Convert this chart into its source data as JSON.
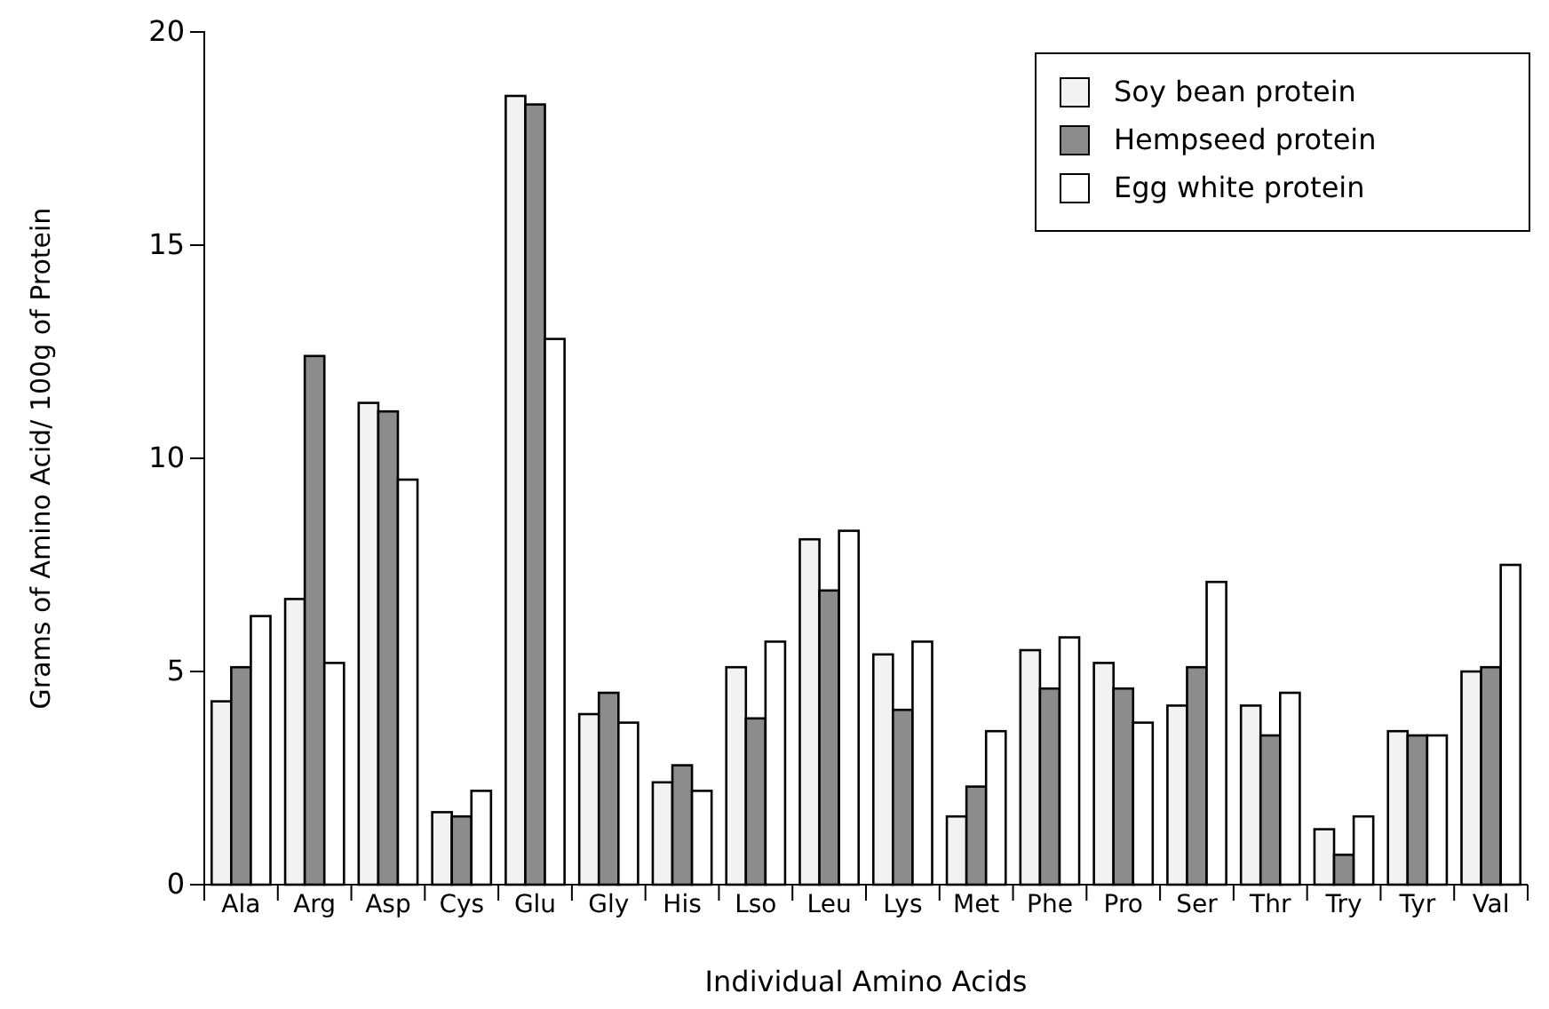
{
  "chart_data": {
    "type": "bar",
    "xlabel": "Individual Amino Acids",
    "ylabel": "Grams of Amino Acid/ 100g of Protein",
    "categories": [
      "Ala",
      "Arg",
      "Asp",
      "Cys",
      "Glu",
      "Gly",
      "His",
      "Lso",
      "Leu",
      "Lys",
      "Met",
      "Phe",
      "Pro",
      "Ser",
      "Thr",
      "Try",
      "Tyr",
      "Val"
    ],
    "series": [
      {
        "name": "Soy bean protein",
        "color": "#f2f2f2",
        "values": [
          4.3,
          6.7,
          11.3,
          1.7,
          18.5,
          4.0,
          2.4,
          5.1,
          8.1,
          5.4,
          1.6,
          5.5,
          5.2,
          4.2,
          4.2,
          1.3,
          3.6,
          5.0
        ]
      },
      {
        "name": "Hempseed protein",
        "color": "#8c8c8c",
        "values": [
          5.1,
          12.4,
          11.1,
          1.6,
          18.3,
          4.5,
          2.8,
          3.9,
          6.9,
          4.1,
          2.3,
          4.6,
          4.6,
          5.1,
          3.5,
          0.7,
          3.5,
          5.1
        ]
      },
      {
        "name": "Egg white protein",
        "color": "#ffffff",
        "values": [
          6.3,
          5.2,
          9.5,
          2.2,
          12.8,
          3.8,
          2.2,
          5.7,
          8.3,
          5.7,
          3.6,
          5.8,
          3.8,
          7.1,
          4.5,
          1.6,
          3.5,
          7.5
        ]
      }
    ],
    "ylim": [
      0,
      20
    ],
    "yticks": [
      0,
      5,
      10,
      15,
      20
    ],
    "grid": false,
    "legend": "top right"
  }
}
